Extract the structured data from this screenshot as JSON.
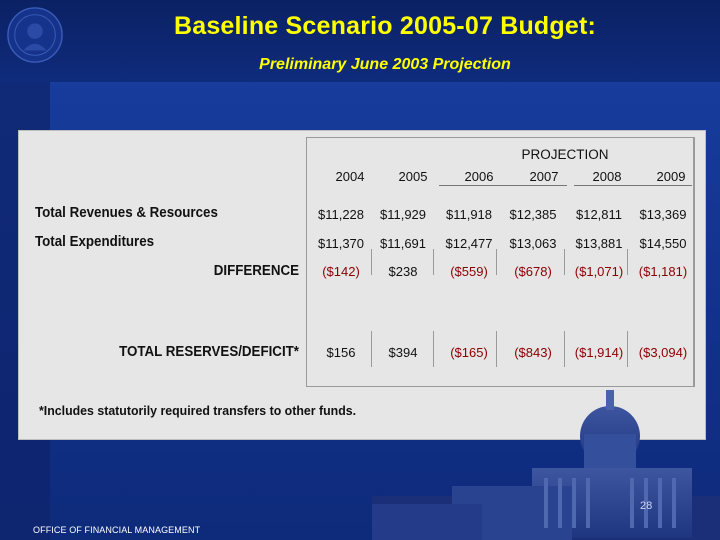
{
  "header": {
    "title": "Baseline Scenario 2005-07 Budget:",
    "subtitle": "Preliminary June 2003 Projection"
  },
  "table": {
    "projection_label": "PROJECTION",
    "years": [
      "2004",
      "2005",
      "2006",
      "2007",
      "2008",
      "2009"
    ],
    "rows": [
      {
        "label": "Total Revenues & Resources",
        "values": [
          "$11,228",
          "$11,929",
          "$11,918",
          "$12,385",
          "$12,811",
          "$13,369"
        ]
      },
      {
        "label": "Total Expenditures",
        "values": [
          "$11,370",
          "$11,691",
          "$12,477",
          "$13,063",
          "$13,881",
          "$14,550"
        ]
      },
      {
        "label": "DIFFERENCE",
        "values": [
          "($142)",
          "$238",
          "($559)",
          "($678)",
          "($1,071)",
          "($1,181)"
        ]
      },
      {
        "label": "TOTAL RESERVES/DEFICIT*",
        "values": [
          "$156",
          "$394",
          "($165)",
          "($843)",
          "($1,914)",
          "($3,094)"
        ]
      }
    ],
    "footnote": "*Includes statutorily required transfers to other funds."
  },
  "footer": {
    "page_number": "28",
    "office": "OFFICE OF FINANCIAL MANAGEMENT"
  },
  "colors": {
    "title": "#ffff00",
    "negative": "#8b0000",
    "background": "#12338f"
  },
  "icons": [
    "state-seal-icon",
    "capitol-building-image"
  ]
}
